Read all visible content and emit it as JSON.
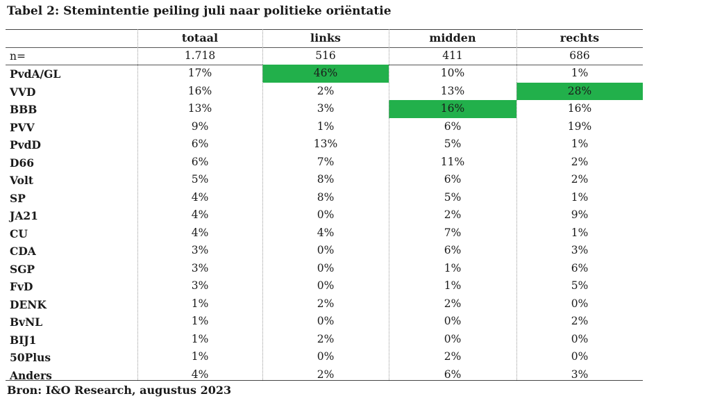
{
  "title": "Tabel 2: Stemintentie peiling juli naar politieke oriëntatie",
  "columns": [
    "totaal",
    "links",
    "midden",
    "rechts"
  ],
  "n_row": {
    "label": "n=",
    "values": [
      "1.718",
      "516",
      "411",
      "686"
    ]
  },
  "highlight_color": "#22b04b",
  "rows": [
    {
      "party": "PvdA/GL",
      "values": [
        "17%",
        "46%",
        "10%",
        "1%"
      ],
      "highlight": 1
    },
    {
      "party": "VVD",
      "values": [
        "16%",
        "2%",
        "13%",
        "28%"
      ],
      "highlight": 3
    },
    {
      "party": "BBB",
      "values": [
        "13%",
        "3%",
        "16%",
        "16%"
      ],
      "highlight": 2
    },
    {
      "party": "PVV",
      "values": [
        "9%",
        "1%",
        "6%",
        "19%"
      ],
      "highlight": -1
    },
    {
      "party": "PvdD",
      "values": [
        "6%",
        "13%",
        "5%",
        "1%"
      ],
      "highlight": -1
    },
    {
      "party": "D66",
      "values": [
        "6%",
        "7%",
        "11%",
        "2%"
      ],
      "highlight": -1
    },
    {
      "party": "Volt",
      "values": [
        "5%",
        "8%",
        "6%",
        "2%"
      ],
      "highlight": -1
    },
    {
      "party": "SP",
      "values": [
        "4%",
        "8%",
        "5%",
        "1%"
      ],
      "highlight": -1
    },
    {
      "party": "JA21",
      "values": [
        "4%",
        "0%",
        "2%",
        "9%"
      ],
      "highlight": -1
    },
    {
      "party": "CU",
      "values": [
        "4%",
        "4%",
        "7%",
        "1%"
      ],
      "highlight": -1
    },
    {
      "party": "CDA",
      "values": [
        "3%",
        "0%",
        "6%",
        "3%"
      ],
      "highlight": -1
    },
    {
      "party": "SGP",
      "values": [
        "3%",
        "0%",
        "1%",
        "6%"
      ],
      "highlight": -1
    },
    {
      "party": "FvD",
      "values": [
        "3%",
        "0%",
        "1%",
        "5%"
      ],
      "highlight": -1
    },
    {
      "party": "DENK",
      "values": [
        "1%",
        "2%",
        "2%",
        "0%"
      ],
      "highlight": -1
    },
    {
      "party": "BvNL",
      "values": [
        "1%",
        "0%",
        "0%",
        "2%"
      ],
      "highlight": -1
    },
    {
      "party": "BIJ1",
      "values": [
        "1%",
        "2%",
        "0%",
        "0%"
      ],
      "highlight": -1
    },
    {
      "party": "50Plus",
      "values": [
        "1%",
        "0%",
        "2%",
        "0%"
      ],
      "highlight": -1
    },
    {
      "party": "Anders",
      "values": [
        "4%",
        "2%",
        "6%",
        "3%"
      ],
      "highlight": -1
    }
  ],
  "source": "Bron: I&O Research, augustus 2023"
}
